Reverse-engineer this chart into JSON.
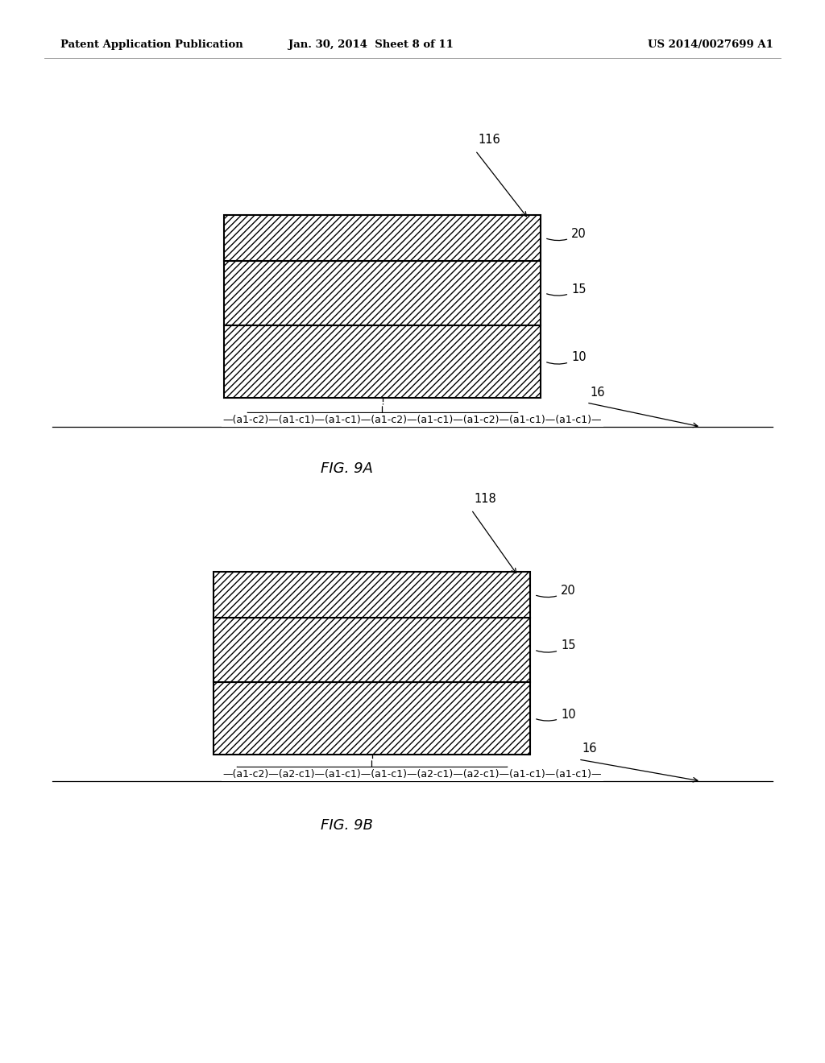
{
  "bg_color": "#ffffff",
  "header_left": "Patent Application Publication",
  "header_center": "Jan. 30, 2014  Sheet 8 of 11",
  "header_right": "US 2014/0027699 A1",
  "fig9a": {
    "label": "FIG. 9A",
    "ref_num": "116",
    "sequence_text": "—(a1-c2)—(a1-c1)—(a1-c1)—(a1-c2)—(a1-c1)—(a1-c2)—(a1-c1)—(a1-c1)—"
  },
  "fig9b": {
    "label": "FIG. 9B",
    "ref_num": "118",
    "sequence_text": "—(a1-c2)—(a2-c1)—(a1-c1)—(a1-c1)—(a2-c1)—(a2-c1)—(a1-c1)—(a1-c1)—"
  },
  "text_color": "#000000"
}
